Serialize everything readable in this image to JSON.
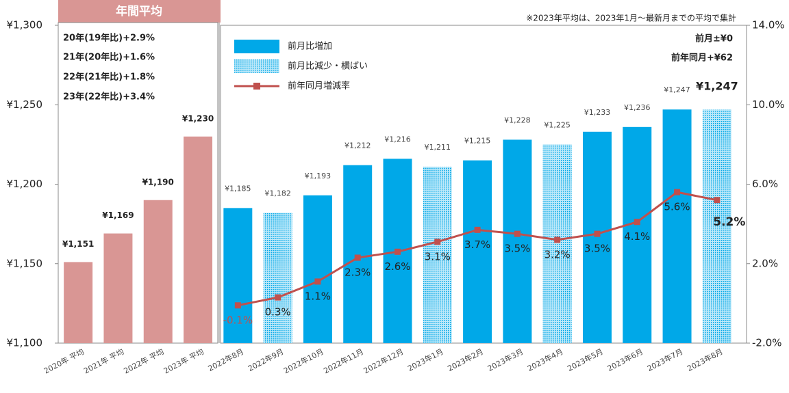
{
  "chart_data": {
    "type": "bar",
    "note": "※2023年平均は、2023年1月～最新月までの平均で集計",
    "annotations": [
      "20年(19年比)+2.9%",
      "21年(20年比)+1.6%",
      "22年(21年比)+1.8%",
      "23年(22年比)+3.4%"
    ],
    "side_notes": [
      "前月±¥0",
      "前年同月+¥62"
    ],
    "categories": [
      "2020年 平均",
      "2021年 平均",
      "2022年 平均",
      "2023年 平均",
      "2022年8月",
      "2022年9月",
      "2022年10月",
      "2022年11月",
      "2022年12月",
      "2023年1月",
      "2023年2月",
      "2023年3月",
      "2023年4月",
      "2023年5月",
      "2023年6月",
      "2023年7月",
      "2023年8月"
    ],
    "ylim": [
      1100,
      1300
    ],
    "yticks": [
      {
        "value": 1100,
        "label": "¥1,100"
      },
      {
        "value": 1150,
        "label": "¥1,150"
      },
      {
        "value": 1200,
        "label": "¥1,200"
      },
      {
        "value": 1250,
        "label": "¥1,250"
      },
      {
        "value": 1300,
        "label": "¥1,300"
      }
    ],
    "y2lim": [
      -2,
      14
    ],
    "y2ticks": [
      {
        "value": -2,
        "label": "-2.0%"
      },
      {
        "value": 2,
        "label": "2.0%"
      },
      {
        "value": 6,
        "label": "6.0%"
      },
      {
        "value": 10,
        "label": "10.0%"
      },
      {
        "value": 14,
        "label": "14.0%"
      }
    ],
    "series": [
      {
        "name": "年間平均",
        "color": "#d99694",
        "values": [
          1151,
          1169,
          1190,
          1230,
          null,
          null,
          null,
          null,
          null,
          null,
          null,
          null,
          null,
          null,
          null,
          null,
          null
        ],
        "value_labels": [
          "¥1,151",
          "¥1,169",
          "¥1,190",
          "¥1,230",
          null,
          null,
          null,
          null,
          null,
          null,
          null,
          null,
          null,
          null,
          null,
          null,
          null
        ]
      },
      {
        "name": "前月比増加",
        "color": "#00a8e8",
        "values": [
          null,
          null,
          null,
          null,
          1185,
          null,
          1193,
          1212,
          1216,
          null,
          1215,
          1228,
          null,
          1233,
          1236,
          1247,
          null
        ],
        "value_labels": [
          null,
          null,
          null,
          null,
          "¥1,185",
          null,
          "¥1,193",
          "¥1,212",
          "¥1,216",
          null,
          "¥1,215",
          "¥1,228",
          null,
          "¥1,233",
          "¥1,236",
          "¥1,247",
          null
        ]
      },
      {
        "name": "前月比減少・横ばい",
        "color": "#00a8e8",
        "fill_pattern": "dotted",
        "values": [
          null,
          null,
          null,
          null,
          null,
          1182,
          null,
          null,
          null,
          1211,
          null,
          null,
          1225,
          null,
          null,
          null,
          1247
        ],
        "value_labels": [
          null,
          null,
          null,
          null,
          null,
          "¥1,182",
          null,
          null,
          null,
          "¥1,211",
          null,
          null,
          "¥1,225",
          null,
          null,
          null,
          "¥1,247"
        ]
      },
      {
        "name": "前年同月増減率",
        "type": "line",
        "axis": "y2",
        "color": "#c0504d",
        "values": [
          null,
          null,
          null,
          null,
          -0.1,
          0.3,
          1.1,
          2.3,
          2.6,
          3.1,
          3.7,
          3.5,
          3.2,
          3.5,
          4.1,
          5.6,
          5.2
        ],
        "value_labels": [
          null,
          null,
          null,
          null,
          "-0.1%",
          "0.3%",
          "1.1%",
          "2.3%",
          "2.6%",
          "3.1%",
          "3.7%",
          "3.5%",
          "3.2%",
          "3.5%",
          "4.1%",
          "5.6%",
          "5.2%"
        ]
      }
    ]
  }
}
